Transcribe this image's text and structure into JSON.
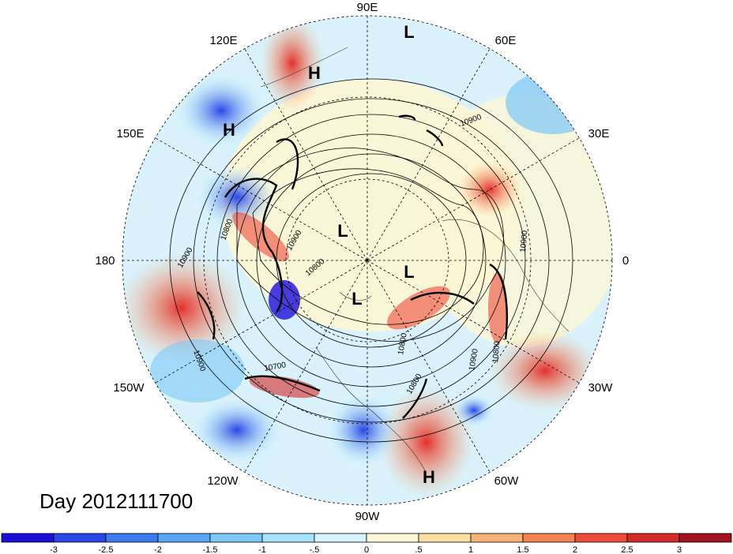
{
  "map": {
    "projection": "north-polar-stereographic",
    "longitude_labels": [
      "90E",
      "60E",
      "30E",
      "0",
      "30W",
      "60W",
      "90W",
      "120W",
      "150W",
      "180",
      "150E",
      "120E"
    ],
    "pressure_centers": [
      {
        "type": "H",
        "lon_label": "120E sector"
      },
      {
        "type": "H",
        "lon_label": "150E sector"
      },
      {
        "type": "L",
        "lon_label": "90E sector"
      },
      {
        "type": "L",
        "lon_label": "pole"
      },
      {
        "type": "L",
        "lon_label": "pole"
      },
      {
        "type": "L",
        "lon_label": "pole"
      },
      {
        "type": "H",
        "lon_label": "60W sector"
      }
    ],
    "contour_labels": [
      "10900",
      "10800",
      "10900",
      "10900",
      "10800",
      "10900",
      "10800",
      "10700",
      "10900",
      "10900",
      "10800",
      "10800"
    ]
  },
  "footer": {
    "day_label": "Day 2012111700"
  },
  "colorbar": {
    "colors": [
      "#1c0fd8",
      "#2a46e6",
      "#3c7cef",
      "#59a6f3",
      "#7dc8f7",
      "#a6e4fb",
      "#d6f4fd",
      "#fdf6d4",
      "#fbdfa2",
      "#f8b277",
      "#f4834f",
      "#ee4b3a",
      "#d42a2a",
      "#a3121f"
    ],
    "tick_labels": [
      "-3",
      "-2.5",
      "-2",
      "-1.5",
      "-1",
      "-.5",
      "0",
      ".5",
      "1",
      "1.5",
      "2",
      "2.5",
      "3"
    ]
  }
}
